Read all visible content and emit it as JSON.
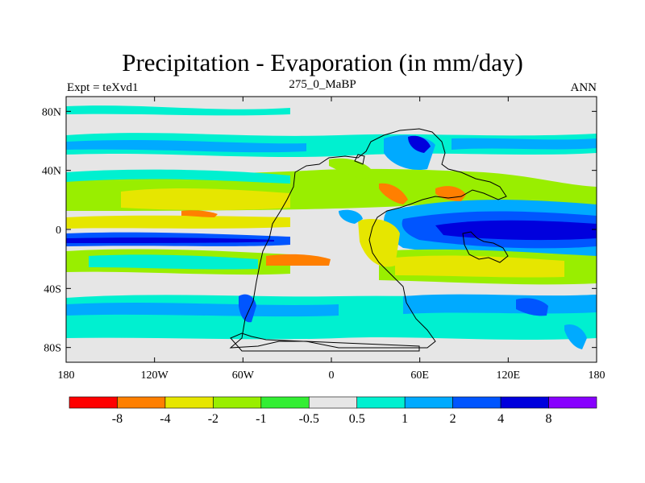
{
  "title": "Precipitation - Evaporation (in mm/day)",
  "subtitle_left": "Expt = teXvd1",
  "subtitle_center": "275_0_MaBP",
  "subtitle_right": "ANN",
  "map": {
    "lat_ticks": [
      {
        "label": "80N",
        "value": 80
      },
      {
        "label": "40N",
        "value": 40
      },
      {
        "label": "0",
        "value": 0
      },
      {
        "label": "40S",
        "value": -40
      },
      {
        "label": "80S",
        "value": -80
      }
    ],
    "lon_ticks": [
      {
        "label": "180",
        "value": -180
      },
      {
        "label": "120W",
        "value": -120
      },
      {
        "label": "60W",
        "value": -60
      },
      {
        "label": "0",
        "value": 0
      },
      {
        "label": "60E",
        "value": 60
      },
      {
        "label": "120E",
        "value": 120
      },
      {
        "label": "180",
        "value": 180
      }
    ],
    "lat_range": [
      -90,
      90
    ],
    "lon_range": [
      -180,
      180
    ]
  },
  "colorbar": {
    "colors": [
      "#ff0000",
      "#ff7f00",
      "#e6e600",
      "#99ee00",
      "#33ee33",
      "#e6e6e6",
      "#00f0d0",
      "#00aaff",
      "#0055ff",
      "#0000dd",
      "#8800ff"
    ],
    "labels": [
      "-8",
      "-4",
      "-2",
      "-1",
      "-0.5",
      "0.5",
      "1",
      "2",
      "4",
      "8"
    ]
  }
}
